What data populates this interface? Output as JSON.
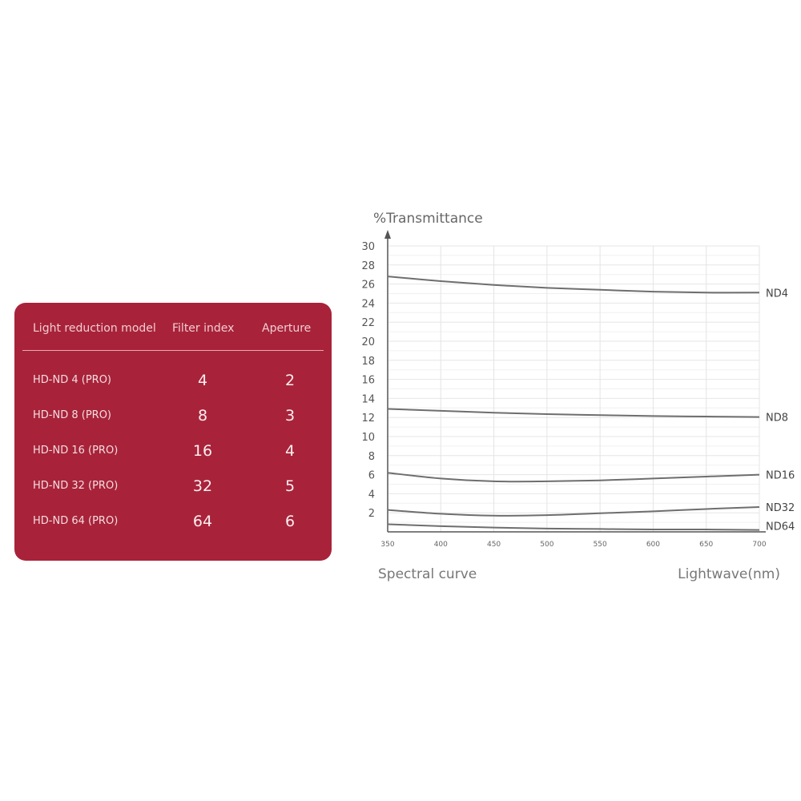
{
  "table": {
    "headers": [
      "Light reduction model",
      "Filter index",
      "Aperture"
    ],
    "rows": [
      [
        "HD-ND 4 (PRO)",
        "4",
        "2"
      ],
      [
        "HD-ND 8 (PRO)",
        "8",
        "3"
      ],
      [
        "HD-ND 16 (PRO)",
        "16",
        "4"
      ],
      [
        "HD-ND 32 (PRO)",
        "32",
        "5"
      ],
      [
        "HD-ND 64 (PRO)",
        "64",
        "6"
      ]
    ],
    "panel_color": "#a8233a"
  },
  "chart_data": {
    "type": "line",
    "ylabel": "%Transmittance",
    "xlabel": "Lightwave(nm)",
    "caption": "Spectral curve",
    "xlim": [
      350,
      700
    ],
    "ylim": [
      0,
      30
    ],
    "xticks": [
      "350",
      "400",
      "450",
      "500",
      "550",
      "600",
      "650",
      "700"
    ],
    "yticks": [
      "2",
      "4",
      "6",
      "8",
      "10",
      "12",
      "14",
      "16",
      "18",
      "20",
      "22",
      "24",
      "26",
      "28",
      "30"
    ],
    "grid": true,
    "line_color": "#6e6e6e",
    "x": [
      350,
      400,
      450,
      500,
      550,
      600,
      650,
      700
    ],
    "series": [
      {
        "name": "ND4",
        "values": [
          26.8,
          26.3,
          25.9,
          25.6,
          25.4,
          25.2,
          25.1,
          25.1
        ]
      },
      {
        "name": "ND8",
        "values": [
          12.9,
          12.7,
          12.5,
          12.35,
          12.25,
          12.15,
          12.1,
          12.05
        ]
      },
      {
        "name": "ND16",
        "values": [
          6.2,
          5.6,
          5.3,
          5.3,
          5.4,
          5.6,
          5.8,
          6.0
        ]
      },
      {
        "name": "ND32",
        "values": [
          2.3,
          1.9,
          1.7,
          1.75,
          1.95,
          2.15,
          2.4,
          2.6
        ]
      },
      {
        "name": "ND64",
        "values": [
          0.8,
          0.6,
          0.45,
          0.35,
          0.3,
          0.25,
          0.25,
          0.2
        ]
      }
    ]
  }
}
